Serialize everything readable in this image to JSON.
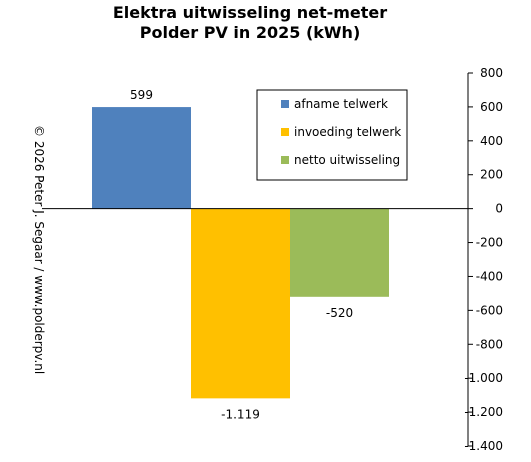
{
  "chart_data": {
    "type": "bar",
    "title_lines": [
      "Elektra uitwisseling  net-meter",
      "Polder PV in 2025 (kWh)"
    ],
    "ylim": [
      -1400,
      800
    ],
    "yticks": [
      800,
      600,
      400,
      200,
      0,
      -200,
      -400,
      -600,
      -800,
      -1000,
      -1200,
      -1400
    ],
    "ytick_labels": [
      "800",
      "600",
      "400",
      "200",
      "0",
      "-200",
      "-400",
      "-600",
      "-800",
      "-1.000",
      "-1.200",
      "-1.400"
    ],
    "series": [
      {
        "name": "afname telwerk",
        "value": 599,
        "label": "599",
        "color": "#4F81BD"
      },
      {
        "name": "invoeding telwerk",
        "value": -1119,
        "label": "-1.119",
        "color": "#FFC000"
      },
      {
        "name": "netto uitwisseling",
        "value": -520,
        "label": "-520",
        "color": "#9BBB59"
      }
    ],
    "grid": false,
    "legend_position": "top-right",
    "copyright": "© 2026 Peter J. Segaar / www.polderpv.nl"
  }
}
